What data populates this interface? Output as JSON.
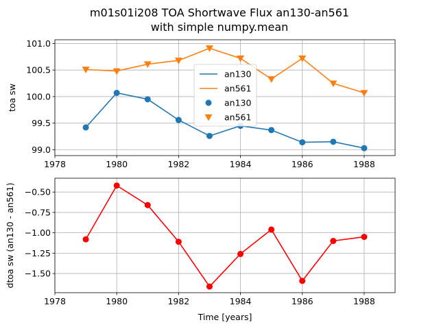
{
  "figure": {
    "title_line1": "m01s01i208 TOA Shortwave Flux an130-an561",
    "title_line2": "with simple numpy.mean"
  },
  "colors": {
    "an130": "#1f77b4",
    "an561": "#ff7f0e",
    "diff": "#ff0000",
    "grid": "#b0b0b0"
  },
  "chart_data": [
    {
      "type": "line",
      "title": "m01s01i208 TOA Shortwave Flux an130-an561 with simple numpy.mean",
      "xlabel": "",
      "ylabel": "toa sw",
      "xlim": [
        1978,
        1989
      ],
      "ylim": [
        98.89,
        101.07
      ],
      "xticks": [
        1978,
        1980,
        1982,
        1984,
        1986,
        1988
      ],
      "xtick_labels": [
        "1978",
        "1980",
        "1982",
        "1984",
        "1986",
        "1988"
      ],
      "yticks": [
        99.0,
        99.5,
        100.0,
        100.5,
        101.0
      ],
      "ytick_labels": [
        "99.0",
        "99.5",
        "100.0",
        "100.5",
        "101.0"
      ],
      "grid": true,
      "legend": {
        "position": "center",
        "entries": [
          {
            "label": "an130",
            "kind": "line",
            "series": "an130"
          },
          {
            "label": "an561",
            "kind": "line",
            "series": "an561"
          },
          {
            "label": "an130",
            "kind": "marker-circle",
            "series": "an130"
          },
          {
            "label": "an561",
            "kind": "marker-triangle",
            "series": "an561"
          }
        ]
      },
      "x": [
        1979,
        1980,
        1981,
        1982,
        1983,
        1984,
        1985,
        1986,
        1987,
        1988
      ],
      "series": [
        {
          "name": "an130",
          "marker": "circle",
          "values": [
            99.42,
            100.07,
            99.95,
            99.56,
            99.26,
            99.45,
            99.37,
            99.14,
            99.15,
            99.03
          ]
        },
        {
          "name": "an561",
          "marker": "triangle-down",
          "values": [
            100.51,
            100.48,
            100.61,
            100.68,
            100.91,
            100.72,
            100.33,
            100.72,
            100.25,
            100.07
          ]
        }
      ]
    },
    {
      "type": "line",
      "title": "",
      "xlabel": "Time [years]",
      "ylabel": "dtoa sw (an130 - an561)",
      "xlim": [
        1978,
        1989
      ],
      "ylim": [
        -1.735,
        -0.33
      ],
      "xticks": [
        1978,
        1980,
        1982,
        1984,
        1986,
        1988
      ],
      "xtick_labels": [
        "1978",
        "1980",
        "1982",
        "1984",
        "1986",
        "1988"
      ],
      "yticks": [
        -1.5,
        -1.25,
        -1.0,
        -0.75,
        -0.5
      ],
      "ytick_labels": [
        "−1.50",
        "−1.25",
        "−1.00",
        "−0.75",
        "−0.50"
      ],
      "grid": true,
      "x": [
        1979,
        1980,
        1981,
        1982,
        1983,
        1984,
        1985,
        1986,
        1987,
        1988
      ],
      "series": [
        {
          "name": "an130 - an561",
          "marker": "circle",
          "values": [
            -1.08,
            -0.42,
            -0.66,
            -1.11,
            -1.66,
            -1.26,
            -0.96,
            -1.59,
            -1.1,
            -1.05
          ]
        }
      ]
    }
  ]
}
